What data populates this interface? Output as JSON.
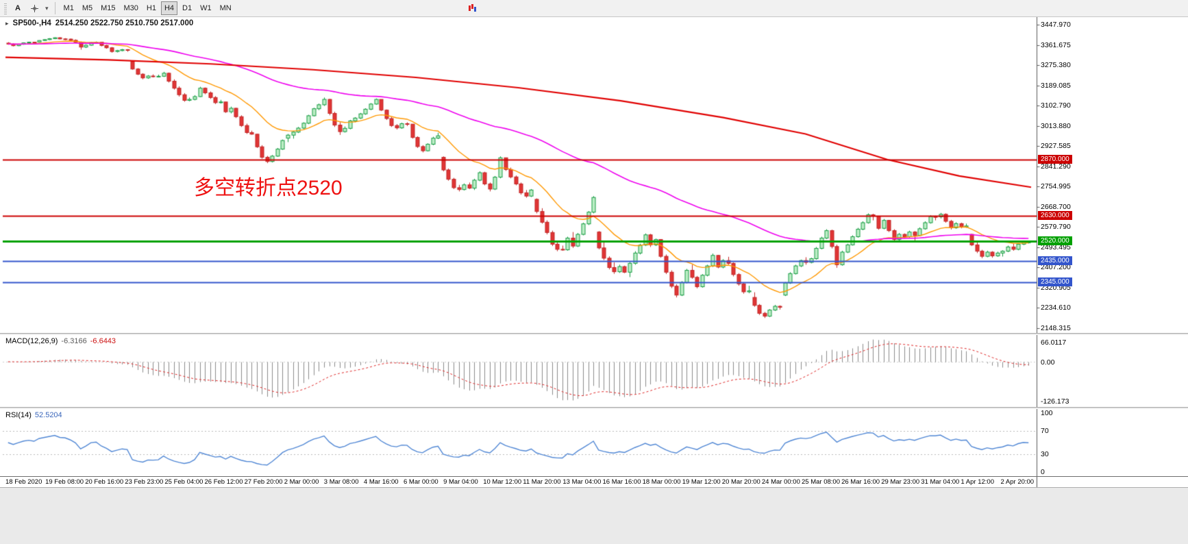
{
  "toolbar": {
    "text_tool_label": "A",
    "timeframes": [
      "M1",
      "M5",
      "M15",
      "M30",
      "H1",
      "H4",
      "D1",
      "W1",
      "MN"
    ],
    "active_timeframe": "H4"
  },
  "chart": {
    "title_symbol": "SP500-,H4",
    "title_ohlc": "2514.250 2522.750 2510.750 2517.000",
    "annotation": {
      "text": "多空转折点2520",
      "color": "#ee1111"
    }
  },
  "macd": {
    "label": "MACD(12,26,9)",
    "value_main": "-6.3166",
    "value_signal": "-6.6443",
    "scale": [
      "66.0117",
      "0.00",
      "-126.173"
    ],
    "params": {
      "fast": 12,
      "slow": 26,
      "signal": 9
    }
  },
  "rsi": {
    "label": "RSI(14)",
    "value": "52.5204",
    "scale": [
      "100",
      "70",
      "30",
      "0"
    ],
    "levels": [
      70,
      30
    ],
    "period": 14
  },
  "chart_data": {
    "type": "candlestick",
    "symbol": "SP500-",
    "period": "H4",
    "ylim": [
      2148.315,
      3447.97
    ],
    "price_ticks": [
      "3447.970",
      "3361.675",
      "3275.380",
      "3189.085",
      "3102.790",
      "3013.880",
      "2927.585",
      "2841.290",
      "2754.995",
      "2668.700",
      "2579.790",
      "2493.495",
      "2407.200",
      "2320.905",
      "2234.610",
      "2148.315"
    ],
    "time_labels": [
      "18 Feb 2020",
      "19 Feb 08:00",
      "20 Feb 16:00",
      "23 Feb 23:00",
      "25 Feb 04:00",
      "26 Feb 12:00",
      "27 Feb 20:00",
      "2 Mar 00:00",
      "3 Mar 08:00",
      "4 Mar 16:00",
      "6 Mar 00:00",
      "9 Mar 04:00",
      "10 Mar 12:00",
      "11 Mar 20:00",
      "13 Mar 04:00",
      "16 Mar 16:00",
      "18 Mar 00:00",
      "19 Mar 12:00",
      "20 Mar 20:00",
      "24 Mar 00:00",
      "25 Mar 08:00",
      "26 Mar 16:00",
      "29 Mar 23:00",
      "31 Mar 04:00",
      "1 Apr 12:00",
      "2 Apr 20:00"
    ],
    "hlines": [
      {
        "value": 2870.0,
        "label": "2870.000",
        "color": "#cc0000",
        "width": 2
      },
      {
        "value": 2630.0,
        "label": "2630.000",
        "color": "#cc0000",
        "width": 2
      },
      {
        "value": 2520.0,
        "label": "2520.000",
        "color": "#00a000",
        "width": 3
      },
      {
        "value": 2435.0,
        "label": "2435.000",
        "color": "#3355cc",
        "width": 2
      },
      {
        "value": 2345.0,
        "label": "2345.000",
        "color": "#3355cc",
        "width": 2
      }
    ],
    "moving_averages": [
      {
        "name": "fast-ma",
        "color": "#ff9800",
        "type": "ema",
        "period": 16
      },
      {
        "name": "medium-ma",
        "color": "#ee00ee",
        "type": "ema",
        "period": 72
      },
      {
        "name": "slow-ma-200",
        "color": "#e00000",
        "type": "anchors",
        "points": [
          [
            0,
            3308
          ],
          [
            0.1,
            3297
          ],
          [
            0.2,
            3280
          ],
          [
            0.3,
            3255
          ],
          [
            0.4,
            3222
          ],
          [
            0.5,
            3178
          ],
          [
            0.6,
            3122
          ],
          [
            0.7,
            3050
          ],
          [
            0.78,
            2980
          ],
          [
            0.86,
            2870
          ],
          [
            0.93,
            2800
          ],
          [
            1,
            2752
          ]
        ]
      }
    ],
    "bars_ohlc": [
      [
        3369,
        3373,
        3362,
        3365
      ],
      [
        3365,
        3368,
        3355,
        3358
      ],
      [
        3358,
        3366,
        3356,
        3364
      ],
      [
        3364,
        3372,
        3362,
        3370
      ],
      [
        3370,
        3375,
        3367,
        3373
      ],
      [
        3373,
        3374,
        3368,
        3370
      ],
      [
        3374,
        3381,
        3372,
        3380
      ],
      [
        3380,
        3386,
        3378,
        3384
      ],
      [
        3384,
        3390,
        3382,
        3388
      ],
      [
        3388,
        3394,
        3386,
        3392
      ],
      [
        3392,
        3394,
        3385,
        3387
      ],
      [
        3387,
        3390,
        3382,
        3386
      ],
      [
        3386,
        3389,
        3378,
        3381
      ],
      [
        3381,
        3385,
        3370,
        3373
      ],
      [
        3373,
        3376,
        3341,
        3352
      ],
      [
        3352,
        3364,
        3348,
        3360
      ],
      [
        3360,
        3374,
        3358,
        3371
      ],
      [
        3371,
        3376,
        3367,
        3373
      ],
      [
        3373,
        3373,
        3355,
        3359
      ],
      [
        3359,
        3362,
        3345,
        3349
      ],
      [
        3349,
        3352,
        3328,
        3333
      ],
      [
        3333,
        3340,
        3329,
        3337
      ],
      [
        3337,
        3344,
        3334,
        3341
      ],
      [
        3341,
        3343,
        3332,
        3338
      ],
      [
        3290,
        3292,
        3255,
        3258
      ],
      [
        3258,
        3262,
        3232,
        3236
      ],
      [
        3236,
        3240,
        3214,
        3220
      ],
      [
        3220,
        3232,
        3216,
        3228
      ],
      [
        3228,
        3235,
        3222,
        3226
      ],
      [
        3226,
        3234,
        3222,
        3227
      ],
      [
        3227,
        3246,
        3224,
        3240
      ],
      [
        3240,
        3243,
        3200,
        3206
      ],
      [
        3206,
        3214,
        3170,
        3176
      ],
      [
        3176,
        3184,
        3140,
        3148
      ],
      [
        3148,
        3155,
        3118,
        3124
      ],
      [
        3124,
        3136,
        3120,
        3128
      ],
      [
        3128,
        3146,
        3124,
        3140
      ],
      [
        3140,
        3182,
        3138,
        3176
      ],
      [
        3176,
        3179,
        3150,
        3156
      ],
      [
        3156,
        3162,
        3130,
        3136
      ],
      [
        3136,
        3142,
        3108,
        3114
      ],
      [
        3114,
        3126,
        3110,
        3117
      ],
      [
        3117,
        3117,
        3070,
        3075
      ],
      [
        3075,
        3097,
        3068,
        3090
      ],
      [
        3090,
        3092,
        3048,
        3054
      ],
      [
        3054,
        3060,
        3010,
        3016
      ],
      [
        3016,
        3024,
        2980,
        2986
      ],
      [
        2986,
        2994,
        2977,
        2979
      ],
      [
        2979,
        2980,
        2920,
        2925
      ],
      [
        2925,
        2932,
        2874,
        2880
      ],
      [
        2880,
        2886,
        2855,
        2862
      ],
      [
        2862,
        2890,
        2858,
        2885
      ],
      [
        2885,
        2920,
        2882,
        2915
      ],
      [
        2915,
        2956,
        2912,
        2952
      ],
      [
        2962,
        2980,
        2945,
        2975
      ],
      [
        2975,
        2992,
        2960,
        2988
      ],
      [
        2988,
        3010,
        2984,
        3005
      ],
      [
        3005,
        3030,
        3000,
        3026
      ],
      [
        3026,
        3062,
        3022,
        3058
      ],
      [
        3058,
        3092,
        3055,
        3088
      ],
      [
        3088,
        3110,
        3082,
        3105
      ],
      [
        3105,
        3136,
        3100,
        3128
      ],
      [
        3128,
        3130,
        3060,
        3068
      ],
      [
        3068,
        3075,
        3010,
        3018
      ],
      [
        3018,
        3030,
        2976,
        2990
      ],
      [
        2990,
        3012,
        2986,
        3004
      ],
      [
        3004,
        3040,
        3000,
        3036
      ],
      [
        3036,
        3052,
        3030,
        3048
      ],
      [
        3048,
        3070,
        3044,
        3066
      ],
      [
        3066,
        3090,
        3062,
        3086
      ],
      [
        3086,
        3112,
        3082,
        3108
      ],
      [
        3108,
        3132,
        3105,
        3128
      ],
      [
        3128,
        3128,
        3078,
        3082
      ],
      [
        3082,
        3085,
        3040,
        3046
      ],
      [
        3046,
        3052,
        3010,
        3016
      ],
      [
        3016,
        3022,
        2999,
        3006
      ],
      [
        3006,
        3028,
        3002,
        3024
      ],
      [
        3024,
        3030,
        3014,
        3022
      ],
      [
        3022,
        3022,
        2960,
        2965
      ],
      [
        2965,
        2970,
        2920,
        2926
      ],
      [
        2926,
        2932,
        2901,
        2908
      ],
      [
        2908,
        2940,
        2905,
        2936
      ],
      [
        2936,
        2968,
        2932,
        2962
      ],
      [
        2962,
        2985,
        2958,
        2972
      ],
      [
        2880,
        2884,
        2820,
        2826
      ],
      [
        2826,
        2832,
        2780,
        2786
      ],
      [
        2786,
        2792,
        2744,
        2750
      ],
      [
        2750,
        2762,
        2734,
        2742
      ],
      [
        2742,
        2768,
        2738,
        2762
      ],
      [
        2762,
        2772,
        2744,
        2748
      ],
      [
        2748,
        2788,
        2740,
        2782
      ],
      [
        2782,
        2820,
        2778,
        2814
      ],
      [
        2814,
        2818,
        2760,
        2766
      ],
      [
        2766,
        2772,
        2734,
        2744
      ],
      [
        2744,
        2800,
        2740,
        2795
      ],
      [
        2795,
        2884,
        2790,
        2878
      ],
      [
        2878,
        2878,
        2822,
        2828
      ],
      [
        2828,
        2836,
        2790,
        2796
      ],
      [
        2796,
        2802,
        2760,
        2766
      ],
      [
        2766,
        2772,
        2720,
        2728
      ],
      [
        2728,
        2740,
        2707,
        2714
      ],
      [
        2714,
        2744,
        2710,
        2740
      ],
      [
        2700,
        2704,
        2640,
        2648
      ],
      [
        2648,
        2662,
        2596,
        2602
      ],
      [
        2602,
        2610,
        2550,
        2558
      ],
      [
        2558,
        2566,
        2500,
        2508
      ],
      [
        2508,
        2516,
        2478,
        2486
      ],
      [
        2486,
        2502,
        2480,
        2484
      ],
      [
        2484,
        2540,
        2480,
        2534
      ],
      [
        2534,
        2560,
        2492,
        2500
      ],
      [
        2500,
        2556,
        2496,
        2550
      ],
      [
        2550,
        2600,
        2546,
        2595
      ],
      [
        2595,
        2650,
        2590,
        2645
      ],
      [
        2645,
        2714,
        2640,
        2708
      ],
      [
        2560,
        2564,
        2486,
        2492
      ],
      [
        2492,
        2520,
        2440,
        2448
      ],
      [
        2448,
        2456,
        2400,
        2408
      ],
      [
        2408,
        2430,
        2381,
        2390
      ],
      [
        2390,
        2420,
        2385,
        2412
      ],
      [
        2412,
        2416,
        2384,
        2388
      ],
      [
        2388,
        2432,
        2367,
        2426
      ],
      [
        2426,
        2478,
        2420,
        2470
      ],
      [
        2470,
        2510,
        2464,
        2504
      ],
      [
        2504,
        2554,
        2500,
        2548
      ],
      [
        2548,
        2552,
        2496,
        2505
      ],
      [
        2505,
        2532,
        2500,
        2528
      ],
      [
        2528,
        2528,
        2450,
        2456
      ],
      [
        2456,
        2464,
        2380,
        2388
      ],
      [
        2388,
        2396,
        2320,
        2328
      ],
      [
        2328,
        2336,
        2280,
        2290
      ],
      [
        2290,
        2350,
        2286,
        2344
      ],
      [
        2344,
        2402,
        2340,
        2396
      ],
      [
        2396,
        2420,
        2360,
        2366
      ],
      [
        2366,
        2372,
        2319,
        2326
      ],
      [
        2326,
        2380,
        2322,
        2375
      ],
      [
        2375,
        2420,
        2370,
        2415
      ],
      [
        2415,
        2468,
        2410,
        2460
      ],
      [
        2460,
        2462,
        2405,
        2410
      ],
      [
        2410,
        2444,
        2405,
        2438
      ],
      [
        2438,
        2454,
        2420,
        2426
      ],
      [
        2426,
        2430,
        2370,
        2378
      ],
      [
        2378,
        2384,
        2330,
        2338
      ],
      [
        2338,
        2344,
        2296,
        2304
      ],
      [
        2304,
        2330,
        2298,
        2308
      ],
      [
        2280,
        2302,
        2240,
        2246
      ],
      [
        2246,
        2252,
        2205,
        2212
      ],
      [
        2212,
        2218,
        2192,
        2200
      ],
      [
        2200,
        2230,
        2196,
        2226
      ],
      [
        2226,
        2248,
        2222,
        2242
      ],
      [
        2242,
        2246,
        2228,
        2238
      ],
      [
        2290,
        2346,
        2286,
        2342
      ],
      [
        2342,
        2388,
        2338,
        2382
      ],
      [
        2382,
        2420,
        2378,
        2415
      ],
      [
        2415,
        2442,
        2410,
        2438
      ],
      [
        2438,
        2452,
        2420,
        2430
      ],
      [
        2430,
        2450,
        2426,
        2446
      ],
      [
        2446,
        2496,
        2442,
        2490
      ],
      [
        2490,
        2540,
        2486,
        2534
      ],
      [
        2534,
        2572,
        2530,
        2566
      ],
      [
        2566,
        2570,
        2490,
        2498
      ],
      [
        2498,
        2506,
        2407,
        2420
      ],
      [
        2420,
        2480,
        2416,
        2474
      ],
      [
        2474,
        2510,
        2470,
        2505
      ],
      [
        2505,
        2546,
        2502,
        2540
      ],
      [
        2540,
        2578,
        2536,
        2572
      ],
      [
        2572,
        2606,
        2568,
        2600
      ],
      [
        2600,
        2640,
        2596,
        2634
      ],
      [
        2634,
        2638,
        2610,
        2628
      ],
      [
        2628,
        2628,
        2570,
        2576
      ],
      [
        2576,
        2616,
        2572,
        2610
      ],
      [
        2610,
        2612,
        2560,
        2566
      ],
      [
        2566,
        2572,
        2520,
        2528
      ],
      [
        2528,
        2556,
        2524,
        2550
      ],
      [
        2550,
        2554,
        2534,
        2540
      ],
      [
        2540,
        2566,
        2536,
        2560
      ],
      [
        2560,
        2564,
        2524,
        2545
      ],
      [
        2545,
        2580,
        2542,
        2574
      ],
      [
        2574,
        2606,
        2570,
        2600
      ],
      [
        2600,
        2632,
        2596,
        2626
      ],
      [
        2626,
        2630,
        2610,
        2625
      ],
      [
        2625,
        2642,
        2618,
        2636
      ],
      [
        2636,
        2640,
        2600,
        2606
      ],
      [
        2606,
        2612,
        2571,
        2578
      ],
      [
        2578,
        2602,
        2574,
        2596
      ],
      [
        2596,
        2600,
        2576,
        2582
      ],
      [
        2582,
        2596,
        2578,
        2586
      ],
      [
        2550,
        2552,
        2500,
        2505
      ],
      [
        2505,
        2522,
        2470,
        2478
      ],
      [
        2478,
        2484,
        2448,
        2456
      ],
      [
        2456,
        2480,
        2452,
        2474
      ],
      [
        2474,
        2478,
        2450,
        2458
      ],
      [
        2458,
        2476,
        2454,
        2470
      ],
      [
        2470,
        2482,
        2455,
        2478
      ],
      [
        2478,
        2502,
        2474,
        2496
      ],
      [
        2496,
        2510,
        2480,
        2486
      ],
      [
        2486,
        2512,
        2482,
        2508
      ],
      [
        2508,
        2524,
        2504,
        2520
      ],
      [
        2514,
        2523,
        2511,
        2517
      ]
    ]
  }
}
